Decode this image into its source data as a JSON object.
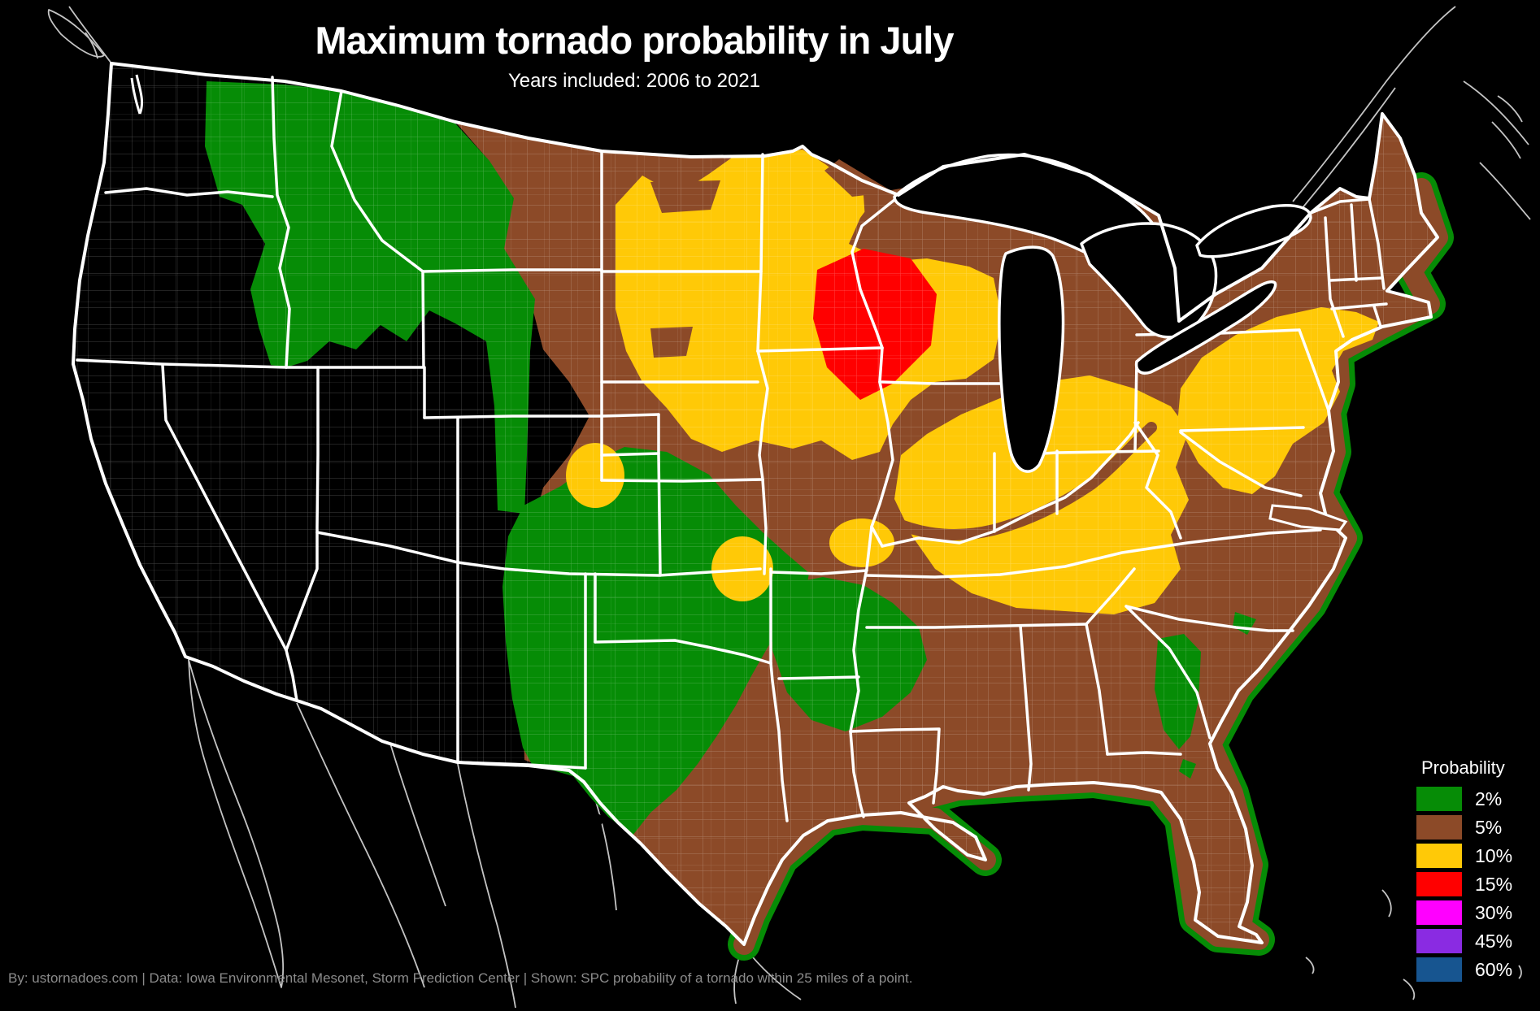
{
  "title": "Maximum tornado probability in July",
  "subtitle": "Years included: 2006 to 2021",
  "footer": "By: ustornadoes.com | Data: Iowa Environmental Mesonet, Storm Prediction Center | Shown: SPC probability of a tornado within 25 miles of a point.",
  "legend": {
    "title": "Probability",
    "entries": [
      {
        "label": "2%",
        "color": "#068c06"
      },
      {
        "label": "5%",
        "color": "#8c4a28"
      },
      {
        "label": "10%",
        "color": "#ffc907"
      },
      {
        "label": "15%",
        "color": "#ff0000"
      },
      {
        "label": "30%",
        "color": "#ff00ff"
      },
      {
        "label": "45%",
        "color": "#8a2be2"
      },
      {
        "label": "60%",
        "color": "#175590"
      }
    ]
  },
  "map": {
    "background_color": "#000000",
    "zero_probability_color": "#000000",
    "state_border_color": "#ffffff",
    "county_line_style": "faint thin lines over all states",
    "foreign_outline_color": "#c4c4c4",
    "regions": [
      {
        "area": "West Coast and interior Southwest (California, Nevada, Arizona, western Utah, western NM, western WA and OR)",
        "probability": "0%"
      },
      {
        "area": "Inland Pacific Northwest and northern Rockies (eastern WA, NE OR, Idaho, western Montana, western Wyoming, northern Utah, western Colorado)",
        "probability": "2%"
      },
      {
        "area": "Southern High Plains (SE Colorado, eastern New Mexico, Texas panhandle and central Texas, Oklahoma, SW Kansas)",
        "probability": "2%"
      },
      {
        "area": "Ozarks (northwest Arkansas, far southern Missouri)",
        "probability": "2%"
      },
      {
        "area": "Eastern Georgia and small Southeast patches",
        "probability": "2%"
      },
      {
        "area": "Broad central and eastern U.S. (eastern Montana to Maine, south Texas, Gulf and Atlantic coasts, Florida)",
        "probability": "5%"
      },
      {
        "area": "Upper Midwest (eastern Dakotas, Minnesota, Wisconsin, northern Iowa)",
        "probability": "10%"
      },
      {
        "area": "Southwest Nebraska",
        "probability": "10%"
      },
      {
        "area": "Central Kansas",
        "probability": "10%"
      },
      {
        "area": "Central Missouri",
        "probability": "10%"
      },
      {
        "area": "Ohio Valley (southern Illinois, Indiana, Ohio, Kentucky, Tennessee, West Virginia)",
        "probability": "10%"
      },
      {
        "area": "Mid-Atlantic and southern New England (eastern PA, NJ, MD, DE, SE NY, CT, RI, MA)",
        "probability": "10%"
      },
      {
        "area": "Southeast Minnesota, western Wisconsin and northeast Iowa",
        "probability": "15%"
      }
    ],
    "unused_legend_levels_on_map": [
      "30%",
      "45%",
      "60%"
    ]
  }
}
